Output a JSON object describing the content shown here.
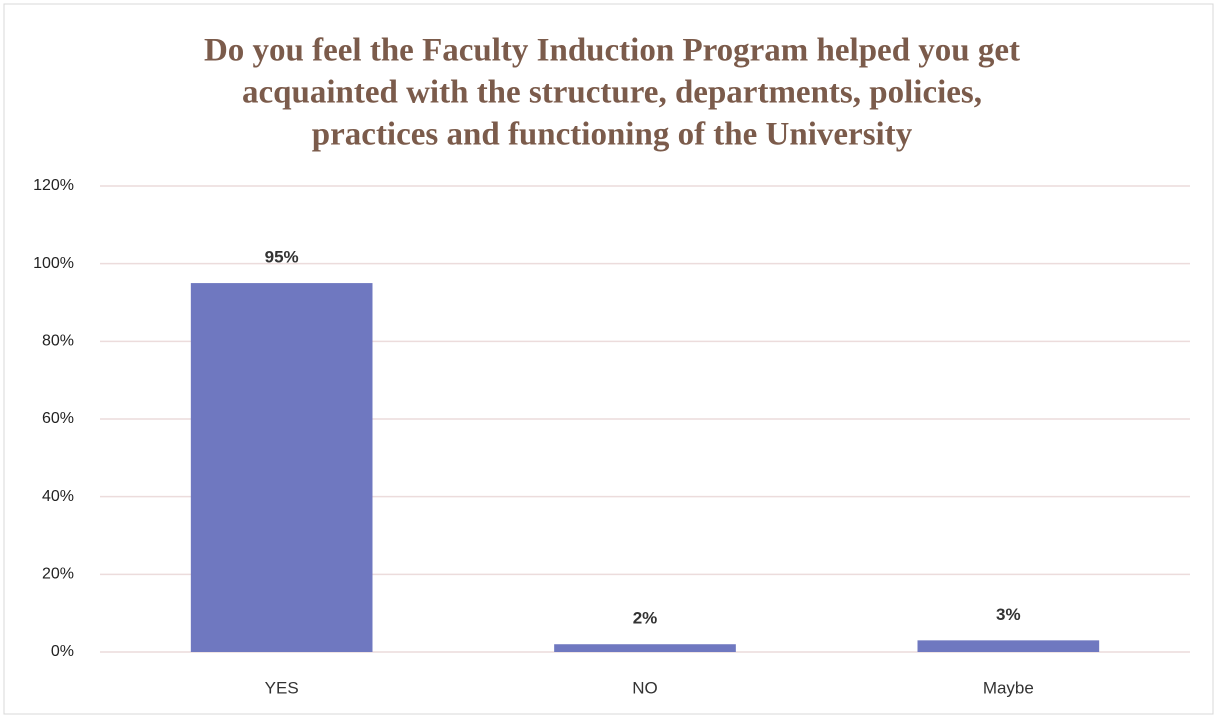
{
  "chart_data": {
    "type": "bar",
    "title": [
      "Do you feel the Faculty Induction Program helped you get",
      "acquainted with the structure, departments, policies,",
      "practices and functioning of the University"
    ],
    "categories": [
      "YES",
      "NO",
      "Maybe"
    ],
    "values": [
      95,
      2,
      3
    ],
    "value_labels": [
      "95%",
      "2%",
      "3%"
    ],
    "color": "#6f78c0",
    "ylim": [
      0,
      120
    ],
    "yticks": [
      {
        "value": 0,
        "label": "0%"
      },
      {
        "value": 20,
        "label": "20%"
      },
      {
        "value": 40,
        "label": "40%"
      },
      {
        "value": 60,
        "label": "60%"
      },
      {
        "value": 80,
        "label": "80%"
      },
      {
        "value": 100,
        "label": "100%"
      },
      {
        "value": 120,
        "label": "120%"
      }
    ],
    "grid": true
  }
}
